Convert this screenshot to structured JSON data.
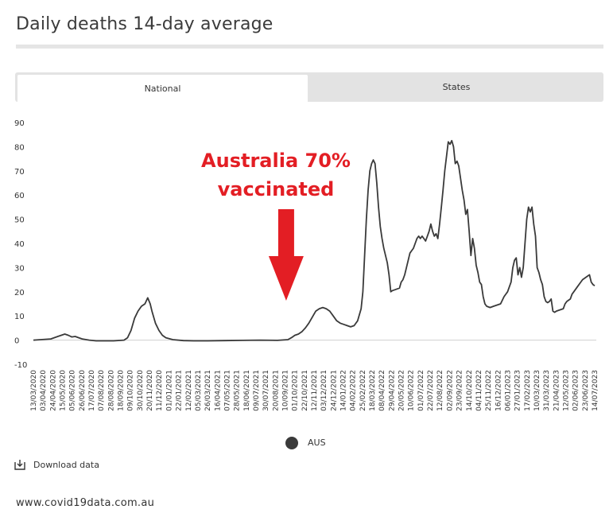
{
  "page": {
    "title": "Daily deaths 14-day average",
    "tabs": [
      {
        "label": "National",
        "active": true
      },
      {
        "label": "States",
        "active": false
      }
    ],
    "download_label": "Download data",
    "footer_url": "www.covid19data.com.au"
  },
  "chart_data": {
    "type": "line",
    "title": "Daily deaths 14-day average",
    "xlabel": "",
    "ylabel": "",
    "ylim": [
      -10,
      90
    ],
    "yticks": [
      -10,
      0,
      10,
      20,
      30,
      40,
      50,
      60,
      70,
      80,
      90
    ],
    "x_tick_labels": [
      "13/03/2020",
      "03/04/2020",
      "24/04/2020",
      "15/05/2020",
      "05/06/2020",
      "26/06/2020",
      "17/07/2020",
      "07/08/2020",
      "28/08/2020",
      "18/09/2020",
      "09/10/2020",
      "30/10/2020",
      "20/11/2020",
      "11/12/2020",
      "01/01/2021",
      "22/01/2021",
      "12/02/2021",
      "05/03/2021",
      "26/03/2021",
      "16/04/2021",
      "07/05/2021",
      "28/05/2021",
      "18/06/2021",
      "09/07/2021",
      "30/07/2021",
      "20/08/2021",
      "10/09/2021",
      "01/10/2021",
      "22/10/2021",
      "12/11/2021",
      "03/12/2021",
      "24/12/2021",
      "14/01/2022",
      "04/02/2022",
      "25/02/2022",
      "18/03/2022",
      "08/04/2022",
      "29/04/2022",
      "20/05/2022",
      "10/06/2022",
      "01/07/2022",
      "22/07/2022",
      "12/08/2022",
      "02/09/2022",
      "23/09/2022",
      "14/10/2022",
      "04/11/2022",
      "25/11/2022",
      "16/12/2022",
      "06/01/2023",
      "27/01/2023",
      "17/02/2023",
      "10/03/2023",
      "31/03/2023",
      "21/04/2023",
      "12/05/2023",
      "02/06/2023",
      "23/06/2023",
      "14/07/2023"
    ],
    "series": [
      {
        "name": "AUS",
        "color": "#3a3a3a",
        "points": [
          [
            0,
            0
          ],
          [
            5,
            0.5
          ],
          [
            7,
            1.5
          ],
          [
            9,
            2.5
          ],
          [
            10,
            2
          ],
          [
            11,
            1.3
          ],
          [
            12,
            1.5
          ],
          [
            13,
            1
          ],
          [
            14,
            0.5
          ],
          [
            16,
            0
          ],
          [
            18,
            -0.3
          ],
          [
            20,
            -0.3
          ],
          [
            23,
            -0.3
          ],
          [
            26,
            0
          ],
          [
            27,
            1
          ],
          [
            28,
            4
          ],
          [
            29,
            9
          ],
          [
            30,
            12
          ],
          [
            31,
            14
          ],
          [
            32,
            15
          ],
          [
            32.8,
            17.5
          ],
          [
            33.5,
            15
          ],
          [
            34,
            12
          ],
          [
            35,
            7
          ],
          [
            36,
            4
          ],
          [
            37,
            2
          ],
          [
            38,
            1
          ],
          [
            40,
            0.2
          ],
          [
            43,
            -0.2
          ],
          [
            46,
            -0.3
          ],
          [
            50,
            -0.3
          ],
          [
            55,
            -0.2
          ],
          [
            60,
            -0.1
          ],
          [
            65,
            0
          ],
          [
            70,
            -0.1
          ],
          [
            73,
            0.2
          ],
          [
            74,
            1
          ],
          [
            75,
            2
          ],
          [
            76,
            2.5
          ],
          [
            77,
            3.5
          ],
          [
            78,
            5
          ],
          [
            79,
            7
          ],
          [
            80,
            9.5
          ],
          [
            81,
            12
          ],
          [
            82,
            13
          ],
          [
            83,
            13.5
          ],
          [
            84,
            13
          ],
          [
            85,
            12
          ],
          [
            86,
            10
          ],
          [
            87,
            8
          ],
          [
            88,
            7
          ],
          [
            89,
            6.5
          ],
          [
            90,
            6
          ],
          [
            91,
            5.5
          ],
          [
            92,
            6
          ],
          [
            93,
            8
          ],
          [
            94,
            13
          ],
          [
            94.5,
            20
          ],
          [
            95,
            35
          ],
          [
            95.5,
            50
          ],
          [
            96,
            62
          ],
          [
            96.5,
            70
          ],
          [
            97,
            73
          ],
          [
            97.5,
            74.5
          ],
          [
            98,
            73
          ],
          [
            98.5,
            65
          ],
          [
            99,
            55
          ],
          [
            99.5,
            47
          ],
          [
            100,
            42
          ],
          [
            100.5,
            38
          ],
          [
            101,
            35
          ],
          [
            101.5,
            32
          ],
          [
            102,
            27
          ],
          [
            102.5,
            20
          ],
          [
            103,
            20.5
          ],
          [
            104,
            21
          ],
          [
            105,
            21.5
          ],
          [
            105.5,
            24
          ],
          [
            106,
            25
          ],
          [
            106.5,
            27
          ],
          [
            107,
            30
          ],
          [
            107.5,
            33
          ],
          [
            108,
            36
          ],
          [
            108.5,
            37
          ],
          [
            109,
            38
          ],
          [
            109.5,
            40
          ],
          [
            110,
            42
          ],
          [
            110.5,
            43
          ],
          [
            111,
            42
          ],
          [
            111.5,
            43
          ],
          [
            112,
            42
          ],
          [
            112.5,
            41
          ],
          [
            113,
            43
          ],
          [
            113.5,
            45
          ],
          [
            114,
            48
          ],
          [
            114.5,
            45
          ],
          [
            115,
            43
          ],
          [
            115.5,
            44
          ],
          [
            116,
            42
          ],
          [
            116.5,
            48
          ],
          [
            117,
            55
          ],
          [
            117.5,
            62
          ],
          [
            118,
            70
          ],
          [
            118.5,
            76
          ],
          [
            119,
            82
          ],
          [
            119.5,
            81
          ],
          [
            120,
            82.5
          ],
          [
            120.5,
            80
          ],
          [
            121,
            73
          ],
          [
            121.5,
            74
          ],
          [
            122,
            72
          ],
          [
            122.5,
            67
          ],
          [
            123,
            62
          ],
          [
            123.5,
            58
          ],
          [
            124,
            52
          ],
          [
            124.5,
            54
          ],
          [
            125,
            45
          ],
          [
            125.5,
            35
          ],
          [
            126,
            42
          ],
          [
            126.5,
            38
          ],
          [
            127,
            31
          ],
          [
            127.5,
            28
          ],
          [
            128,
            24
          ],
          [
            128.5,
            23
          ],
          [
            129,
            18
          ],
          [
            129.5,
            15
          ],
          [
            130,
            14
          ],
          [
            131,
            13.5
          ],
          [
            132,
            14
          ],
          [
            133,
            14.5
          ],
          [
            134,
            15
          ],
          [
            135,
            18
          ],
          [
            136,
            20
          ],
          [
            137,
            24
          ],
          [
            137.5,
            30
          ],
          [
            138,
            33
          ],
          [
            138.5,
            34
          ],
          [
            139,
            27
          ],
          [
            139.5,
            30
          ],
          [
            140,
            26
          ],
          [
            140.5,
            30
          ],
          [
            141,
            40
          ],
          [
            141.5,
            50
          ],
          [
            142,
            55
          ],
          [
            142.5,
            53
          ],
          [
            143,
            55
          ],
          [
            143.5,
            48
          ],
          [
            144,
            43
          ],
          [
            144.5,
            30
          ],
          [
            145,
            28
          ],
          [
            145.5,
            25
          ],
          [
            146,
            23
          ],
          [
            146.5,
            18
          ],
          [
            147,
            16
          ],
          [
            147.5,
            15.5
          ],
          [
            148,
            16
          ],
          [
            148.5,
            17
          ],
          [
            149,
            12
          ],
          [
            149.5,
            11.5
          ],
          [
            150,
            12
          ],
          [
            151,
            12.5
          ],
          [
            152,
            13
          ],
          [
            152.5,
            15
          ],
          [
            153,
            16
          ],
          [
            154,
            17
          ],
          [
            154.5,
            19
          ],
          [
            155,
            20
          ],
          [
            156,
            22
          ],
          [
            157,
            24
          ],
          [
            157.5,
            25
          ],
          [
            158,
            25.5
          ],
          [
            159,
            26.5
          ],
          [
            159.5,
            27
          ],
          [
            160,
            24
          ],
          [
            160.5,
            23
          ],
          [
            161,
            22.5
          ]
        ]
      }
    ],
    "x_domain": [
      0,
      161
    ],
    "annotations": [
      {
        "text_lines": [
          "Australia 70%",
          "vaccinated"
        ],
        "color": "#e31e24",
        "points_to_x": 72.5
      }
    ],
    "legend": {
      "position": "bottom-center",
      "entries": [
        "AUS"
      ]
    },
    "grid": false
  }
}
